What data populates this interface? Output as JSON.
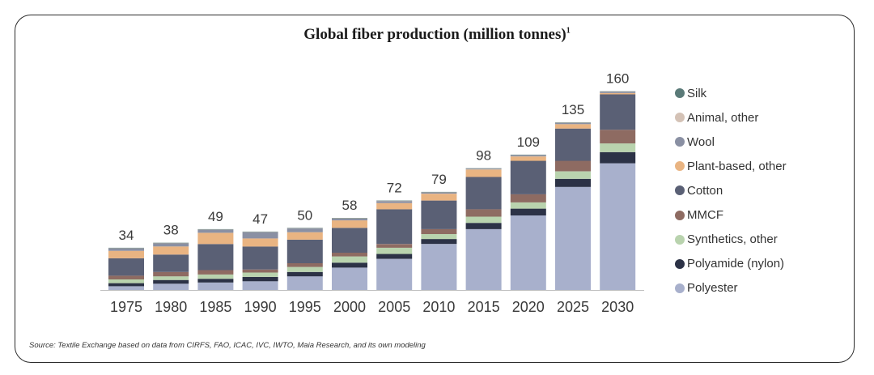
{
  "chart_data": {
    "type": "bar",
    "stacked": true,
    "title": "Global fiber production (million tonnes)",
    "title_footnote_marker": "1",
    "categories": [
      "1975",
      "1980",
      "1985",
      "1990",
      "1995",
      "2000",
      "2005",
      "2010",
      "2015",
      "2020",
      "2025",
      "2030"
    ],
    "totals": [
      34,
      38,
      49,
      47,
      50,
      58,
      72,
      79,
      98,
      109,
      135,
      160
    ],
    "ylim": [
      0,
      165
    ],
    "series": [
      {
        "name": "Polyester",
        "color": "#a8b0cc",
        "values": [
          3,
          5,
          6,
          7,
          11,
          18,
          25,
          37,
          49,
          60,
          83,
          102
        ]
      },
      {
        "name": "Polyamide (nylon)",
        "color": "#2c3246",
        "values": [
          2.5,
          3,
          3,
          3.5,
          3.5,
          4,
          4,
          4,
          5,
          5.5,
          6.5,
          9
        ]
      },
      {
        "name": "Synthetics, other",
        "color": "#b9d3ae",
        "values": [
          3,
          3,
          3.5,
          3.5,
          4,
          5,
          5,
          4,
          5,
          5,
          6,
          7
        ]
      },
      {
        "name": "MMCF",
        "color": "#8e6b62",
        "values": [
          3,
          3.5,
          3.5,
          2.5,
          3,
          3,
          3,
          4,
          6,
          6.5,
          8.5,
          11
        ]
      },
      {
        "name": "Cotton",
        "color": "#5a6075",
        "values": [
          14,
          14,
          21,
          18.5,
          19,
          20,
          28,
          23,
          26,
          27,
          26,
          28.5
        ]
      },
      {
        "name": "Plant-based, other",
        "color": "#e9b482",
        "values": [
          6,
          6.5,
          9,
          6.5,
          6,
          6,
          5,
          5.5,
          6,
          3.5,
          3.5,
          1
        ]
      },
      {
        "name": "Wool",
        "color": "#8a90a3",
        "values": [
          2,
          2.5,
          2.5,
          5,
          3,
          1.5,
          1.5,
          1,
          0.6,
          1,
          1,
          1
        ],
        "legend_label": "Wool"
      },
      {
        "name": "Animal, other",
        "color": "#d4c2b6",
        "values": [
          0.3,
          0.3,
          0.3,
          0.3,
          0.3,
          0.3,
          0.3,
          0.3,
          0.2,
          0.3,
          0.3,
          0.3
        ]
      },
      {
        "name": "Silk",
        "color": "#5a7a78",
        "values": [
          0.2,
          0.2,
          0.2,
          0.2,
          0.2,
          0.2,
          0.2,
          0.2,
          0.2,
          0.2,
          0.2,
          0.2
        ]
      }
    ],
    "legend_order": [
      "Silk",
      "Animal, other",
      "Wool",
      "Plant-based, other",
      "Cotton",
      "MMCF",
      "Synthetics, other",
      "Polyamide (nylon)",
      "Polyester"
    ],
    "legend_position": "right",
    "grid": false
  },
  "source_note": "Source: Textile Exchange based on data from CIRFS, FAO, ICAC, IVC, IWTO, Maia Research, and its own modeling"
}
